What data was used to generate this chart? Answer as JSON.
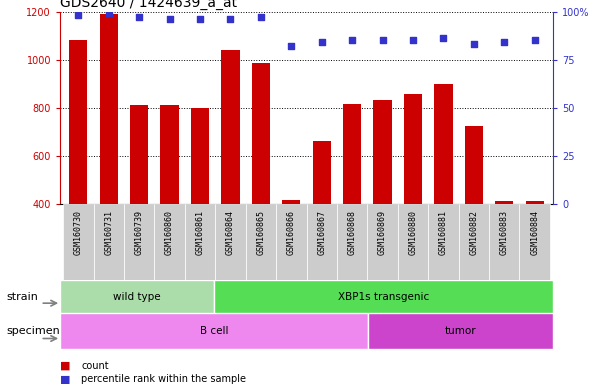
{
  "title": "GDS2640 / 1424639_a_at",
  "samples": [
    "GSM160730",
    "GSM160731",
    "GSM160739",
    "GSM160860",
    "GSM160861",
    "GSM160864",
    "GSM160865",
    "GSM160866",
    "GSM160867",
    "GSM160868",
    "GSM160869",
    "GSM160880",
    "GSM160881",
    "GSM160882",
    "GSM160883",
    "GSM160884"
  ],
  "counts": [
    1080,
    1190,
    810,
    810,
    800,
    1040,
    985,
    415,
    660,
    815,
    830,
    855,
    900,
    725,
    410,
    410
  ],
  "percentiles": [
    98,
    99,
    97,
    96,
    96,
    96,
    97,
    82,
    84,
    85,
    85,
    85,
    86,
    83,
    84,
    85
  ],
  "ylim_left": [
    400,
    1200
  ],
  "ylim_right": [
    0,
    100
  ],
  "yticks_left": [
    400,
    600,
    800,
    1000,
    1200
  ],
  "yticks_right": [
    0,
    25,
    50,
    75,
    100
  ],
  "bar_color": "#cc0000",
  "dot_color": "#3333cc",
  "background_color": "#ffffff",
  "strain_groups": [
    {
      "label": "wild type",
      "start": 0,
      "end": 5,
      "color": "#aaddaa"
    },
    {
      "label": "XBP1s transgenic",
      "start": 5,
      "end": 16,
      "color": "#55dd55"
    }
  ],
  "specimen_groups": [
    {
      "label": "B cell",
      "start": 0,
      "end": 10,
      "color": "#ee88ee"
    },
    {
      "label": "tumor",
      "start": 10,
      "end": 16,
      "color": "#cc44cc"
    }
  ],
  "tick_label_bg": "#cccccc",
  "strain_row_label": "strain",
  "specimen_row_label": "specimen",
  "legend_count_label": "count",
  "legend_pct_label": "percentile rank within the sample",
  "left_axis_color": "#cc0000",
  "right_axis_color": "#3333cc"
}
